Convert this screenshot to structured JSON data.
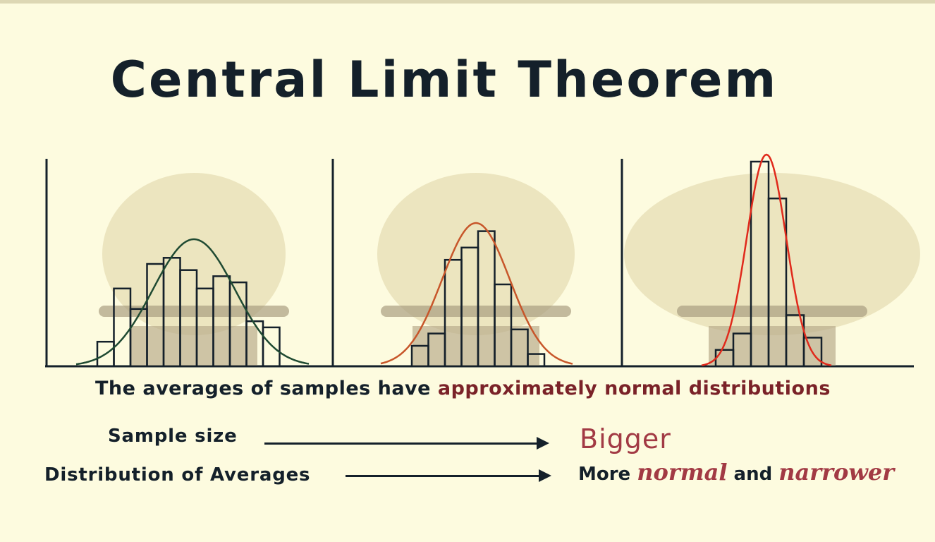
{
  "title": "Central Limit Theorem",
  "caption": {
    "prefix": "The averages of samples have",
    "emphasis": "approximately normal distributions"
  },
  "rows": [
    {
      "label": "Sample size",
      "result": "Bigger"
    },
    {
      "label": "Distribution of Averages",
      "result_prefix": "More",
      "result_word1": "normal",
      "result_mid": "and",
      "result_word2": "narrower"
    }
  ],
  "colors": {
    "background": "#fdfbdf",
    "ink": "#14202a",
    "accent_red": "#a23a44",
    "curve_1": "#1f4a32",
    "curve_2": "#c7562a",
    "curve_3": "#e02a1c",
    "illustration": "#d6c99a"
  },
  "chart_data": [
    {
      "type": "bar",
      "title": "",
      "values": [
        0.12,
        0.38,
        0.28,
        0.5,
        0.53,
        0.47,
        0.38,
        0.44,
        0.41,
        0.22,
        0.19
      ],
      "curve": "normal",
      "curve_color": "#1f4a32"
    },
    {
      "type": "bar",
      "title": "",
      "values": [
        0.1,
        0.16,
        0.52,
        0.58,
        0.66,
        0.4,
        0.18,
        0.06
      ],
      "curve": "normal",
      "curve_color": "#c7562a"
    },
    {
      "type": "bar",
      "title": "",
      "values": [
        0.08,
        0.16,
        1.0,
        0.82,
        0.25,
        0.14
      ],
      "curve": "normal",
      "curve_color": "#e02a1c"
    }
  ]
}
